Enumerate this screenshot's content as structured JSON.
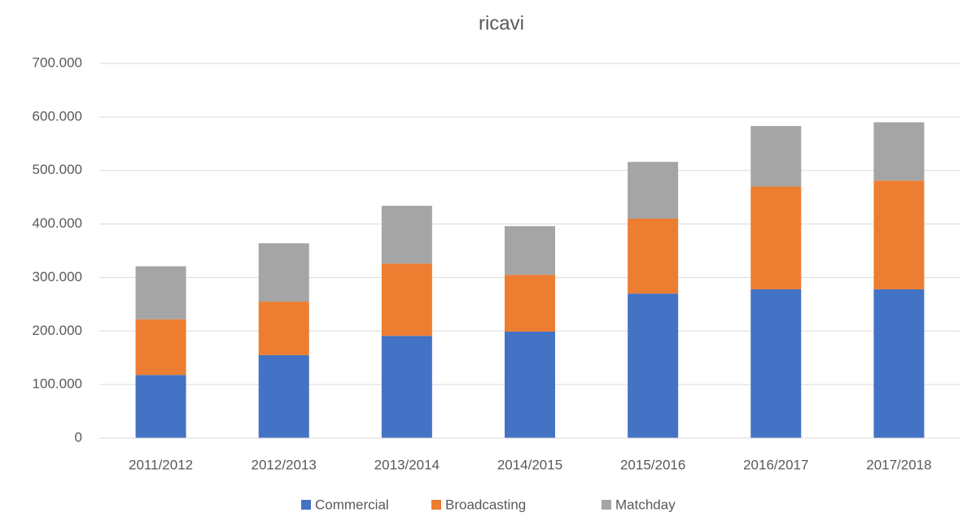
{
  "chart_data": {
    "type": "stacked_bar",
    "title": "ricavi",
    "categories": [
      "2011/2012",
      "2012/2013",
      "2013/2014",
      "2014/2015",
      "2015/2016",
      "2016/2017",
      "2017/2018"
    ],
    "series": [
      {
        "name": "Commercial",
        "color": "#4472c4",
        "values": [
          118000,
          155000,
          191000,
          199000,
          270000,
          278000,
          278000
        ]
      },
      {
        "name": "Broadcasting",
        "color": "#ed7d31",
        "values": [
          104000,
          100000,
          135000,
          106000,
          140000,
          192000,
          203000
        ]
      },
      {
        "name": "Matchday",
        "color": "#a5a5a5",
        "values": [
          99000,
          109000,
          108000,
          91000,
          106000,
          113000,
          109000
        ]
      }
    ],
    "ylim": [
      0,
      700000
    ],
    "yticks": [
      0,
      {
        "value": 100000,
        "label": "100.000"
      },
      {
        "value": 200000,
        "label": "200.000"
      },
      {
        "value": 300000,
        "label": "300.000"
      },
      {
        "value": 400000,
        "label": "400.000"
      },
      {
        "value": 500000,
        "label": "500.000"
      },
      {
        "value": 600000,
        "label": "600.000"
      },
      {
        "value": 700000,
        "label": "700.000"
      }
    ],
    "grid": true,
    "legend": "bottom"
  }
}
